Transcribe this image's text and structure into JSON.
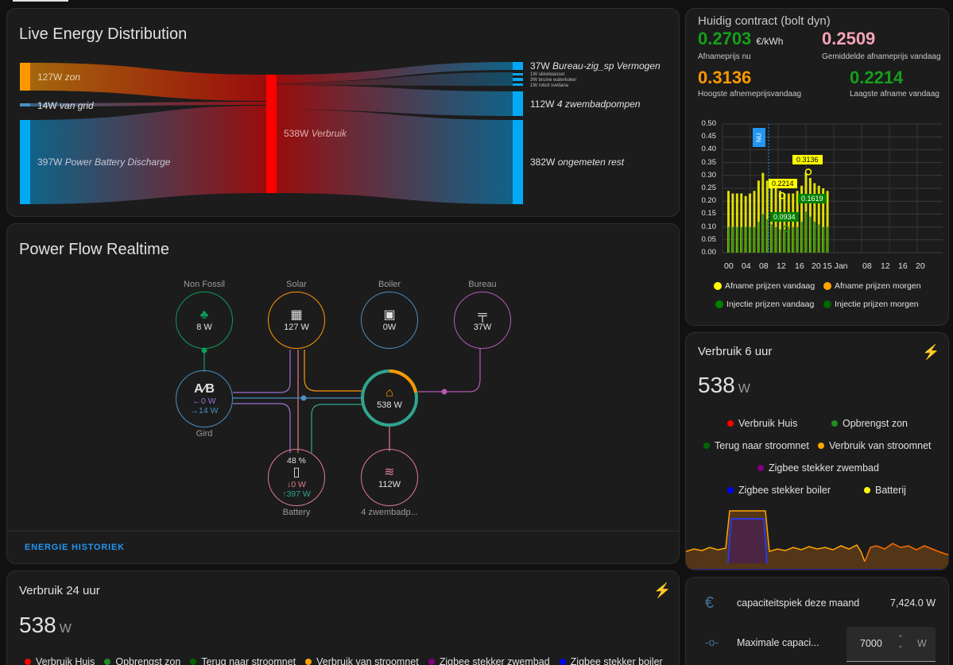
{
  "sankey": {
    "title": "Live Energy Distribution",
    "sources": [
      {
        "value": "127W",
        "name": "zon"
      },
      {
        "value": "14W",
        "name": "van grid"
      },
      {
        "value": "397W",
        "name": "Power Battery Discharge"
      }
    ],
    "middle": {
      "value": "538W",
      "name": "Verbruik"
    },
    "targets": [
      {
        "value": "37W",
        "name": "Bureau-zig_sp Vermogen"
      },
      {
        "value": "112W",
        "name": "4 zwembadpompen"
      },
      {
        "value": "382W",
        "name": "ongemeten rest"
      }
    ],
    "tiny_targets": [
      "1W ukkelwasser",
      "3W bruine waterkoker",
      "1W robot sveliana"
    ],
    "colors": {
      "solar": "#ff9800",
      "grid": "#488fc2",
      "battery": "#03a9f4",
      "consumption": "#ff0000"
    }
  },
  "power_flow": {
    "title": "Power Flow Realtime",
    "non_fossil": {
      "label": "Non Fossil",
      "value": "8 W"
    },
    "solar": {
      "label": "Solar",
      "value": "127 W"
    },
    "boiler": {
      "label": "Boiler",
      "value": "0W"
    },
    "bureau": {
      "label": "Bureau",
      "value": "37W"
    },
    "grid": {
      "label": "Gird",
      "out": "0 W",
      "in": "14 W"
    },
    "home": {
      "value": "538 W"
    },
    "battery": {
      "label": "Battery",
      "percent": "48 %",
      "in": "0 W",
      "out": "397 W"
    },
    "pool": {
      "label": "4 zwembadp...",
      "value": "112W"
    },
    "link": "ENERGIE HISTORIEK"
  },
  "verbruik24": {
    "title": "Verbruik 24 uur",
    "value": "538",
    "unit": "W",
    "legend": [
      {
        "name": "Verbruik Huis",
        "color": "#ff0000"
      },
      {
        "name": "Opbrengst zon",
        "color": "#228b22"
      },
      {
        "name": "Terug naar stroomnet",
        "color": "#006400"
      },
      {
        "name": "Verbruik van stroomnet",
        "color": "#ffa500"
      },
      {
        "name": "Zigbee stekker zwembad",
        "color": "#800080"
      },
      {
        "name": "Zigbee stekker boiler",
        "color": "#0000ff"
      }
    ]
  },
  "prices": {
    "title": "Huidig contract (bolt dyn)",
    "now": {
      "value": "0.2703",
      "unit": "€/kWh",
      "label": "Afnameprijs nu",
      "color": "#14a01a"
    },
    "avg": {
      "value": "0.2509",
      "label": "Gemiddelde afnameprijs vandaag",
      "color": "#f5a3b8"
    },
    "max": {
      "value": "0.3136",
      "label": "Hoogste afnemeprijsvandaag",
      "color": "#ff9800"
    },
    "min": {
      "value": "0.2214",
      "label": "Laagste afname vandaag",
      "color": "#14a01a"
    },
    "now_marker": "NU",
    "annotations": [
      "0.3136",
      "0.2214",
      "0.1619",
      "0.0934"
    ],
    "legend": [
      {
        "name": "Afname prijzen vandaag",
        "color": "#ffff00"
      },
      {
        "name": "Afname prijzen morgen",
        "color": "#ffa500"
      },
      {
        "name": "Injectie prijzen vandaag",
        "color": "#008000"
      },
      {
        "name": "Injectie prijzen morgen",
        "color": "#006400"
      }
    ]
  },
  "chart_data": {
    "type": "bar",
    "yticks": [
      "0.50",
      "0.45",
      "0.40",
      "0.35",
      "0.30",
      "0.25",
      "0.20",
      "0.15",
      "0.10",
      "0.05",
      "0.00"
    ],
    "xticks": [
      "00",
      "04",
      "08",
      "12",
      "16",
      "20",
      "15 Jan",
      "08",
      "12",
      "16",
      "20"
    ],
    "ylim": [
      0,
      0.5
    ],
    "series": [
      {
        "name": "Afname prijzen vandaag",
        "values": [
          0.24,
          0.23,
          0.23,
          0.23,
          0.22,
          0.23,
          0.24,
          0.28,
          0.31,
          0.28,
          0.26,
          0.25,
          0.24,
          0.23,
          0.23,
          0.23,
          0.24,
          0.26,
          0.31,
          0.29,
          0.27,
          0.26,
          0.25,
          0.24
        ]
      },
      {
        "name": "Injectie prijzen vandaag",
        "values": [
          0.1,
          0.1,
          0.1,
          0.1,
          0.1,
          0.1,
          0.1,
          0.12,
          0.15,
          0.13,
          0.11,
          0.1,
          0.09,
          0.09,
          0.09,
          0.1,
          0.1,
          0.12,
          0.16,
          0.14,
          0.12,
          0.11,
          0.1,
          0.1
        ]
      }
    ]
  },
  "verbruik6": {
    "title": "Verbruik 6 uur",
    "value": "538",
    "unit": "W",
    "legend": [
      {
        "name": "Verbruik Huis",
        "color": "#ff0000"
      },
      {
        "name": "Opbrengst zon",
        "color": "#228b22"
      },
      {
        "name": "Terug naar stroomnet",
        "color": "#006400"
      },
      {
        "name": "Verbruik van stroomnet",
        "color": "#ffa500"
      },
      {
        "name": "Zigbee stekker zwembad",
        "color": "#800080"
      },
      {
        "name": "Zigbee stekker boiler",
        "color": "#0000ff"
      },
      {
        "name": "Batterij",
        "color": "#ffff00"
      }
    ]
  },
  "capacity": {
    "peak_label": "capaciteitspiek deze maand",
    "peak_value": "7,424.0 W",
    "max_label": "Maximale capaci...",
    "max_value": "7000",
    "max_unit": "W"
  }
}
